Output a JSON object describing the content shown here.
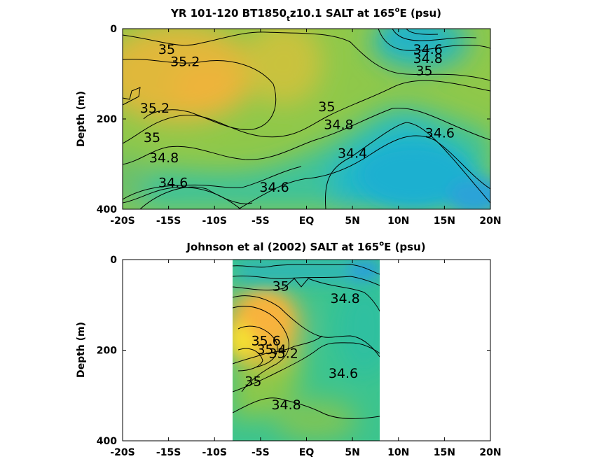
{
  "chart_data": [
    {
      "type": "heatmap",
      "title": {
        "main": "YR 101-120 BT1850",
        "sub": "t",
        "rest": "z10.1 SALT at 165",
        "deg": "o",
        "end": "E (psu)"
      },
      "ylabel": "Depth (m)",
      "xticks": [
        "-20S",
        "-15S",
        "-10S",
        "-5S",
        "EQ",
        "5N",
        "10N",
        "15N",
        "20N"
      ],
      "xtick_values": [
        -20,
        -15,
        -10,
        -5,
        0,
        5,
        10,
        15,
        20
      ],
      "yticks": [
        "0",
        "200",
        "400"
      ],
      "ytick_values": [
        0,
        200,
        400
      ],
      "xlim": [
        -20,
        20
      ],
      "ylim": [
        0,
        400
      ],
      "data_extent": [
        -20,
        20
      ],
      "contour_labels": [
        {
          "text": "35",
          "x": -15.2,
          "y": 45
        },
        {
          "text": "35.2",
          "x": -13.2,
          "y": 72
        },
        {
          "text": "34.6",
          "x": 13.2,
          "y": 45
        },
        {
          "text": "34.8",
          "x": 13.2,
          "y": 65
        },
        {
          "text": "35",
          "x": 12.8,
          "y": 92
        },
        {
          "text": "35.2",
          "x": -16.5,
          "y": 175
        },
        {
          "text": "35",
          "x": 2.2,
          "y": 172
        },
        {
          "text": "34.8",
          "x": 3.5,
          "y": 212
        },
        {
          "text": "34.6",
          "x": 14.5,
          "y": 230
        },
        {
          "text": "35",
          "x": -16.8,
          "y": 240
        },
        {
          "text": "34.8",
          "x": -15.5,
          "y": 285
        },
        {
          "text": "34.4",
          "x": 5,
          "y": 275
        },
        {
          "text": "34.6",
          "x": -14.5,
          "y": 340
        },
        {
          "text": "34.6",
          "x": -3.5,
          "y": 350
        }
      ]
    },
    {
      "type": "heatmap",
      "title": {
        "main": "Johnson et al (2002) SALT at 165",
        "deg": "o",
        "end": "E (psu)"
      },
      "ylabel": "Depth (m)",
      "xticks": [
        "-20S",
        "-15S",
        "-10S",
        "-5S",
        "EQ",
        "5N",
        "10N",
        "15N",
        "20N"
      ],
      "xtick_values": [
        -20,
        -15,
        -10,
        -5,
        0,
        5,
        10,
        15,
        20
      ],
      "yticks": [
        "0",
        "200",
        "400"
      ],
      "ytick_values": [
        0,
        200,
        400
      ],
      "xlim": [
        -20,
        20
      ],
      "ylim": [
        0,
        400
      ],
      "data_extent": [
        -8,
        8
      ],
      "contour_labels": [
        {
          "text": "35",
          "x": -2.8,
          "y": 58
        },
        {
          "text": "34.8",
          "x": 4.2,
          "y": 85
        },
        {
          "text": "35.6",
          "x": -4.4,
          "y": 178
        },
        {
          "text": "35.4",
          "x": -3.8,
          "y": 198
        },
        {
          "text": "35.2",
          "x": -2.5,
          "y": 206
        },
        {
          "text": "35",
          "x": -5.8,
          "y": 268
        },
        {
          "text": "34.6",
          "x": 4,
          "y": 250
        },
        {
          "text": "34.8",
          "x": -2.2,
          "y": 320
        }
      ]
    }
  ]
}
